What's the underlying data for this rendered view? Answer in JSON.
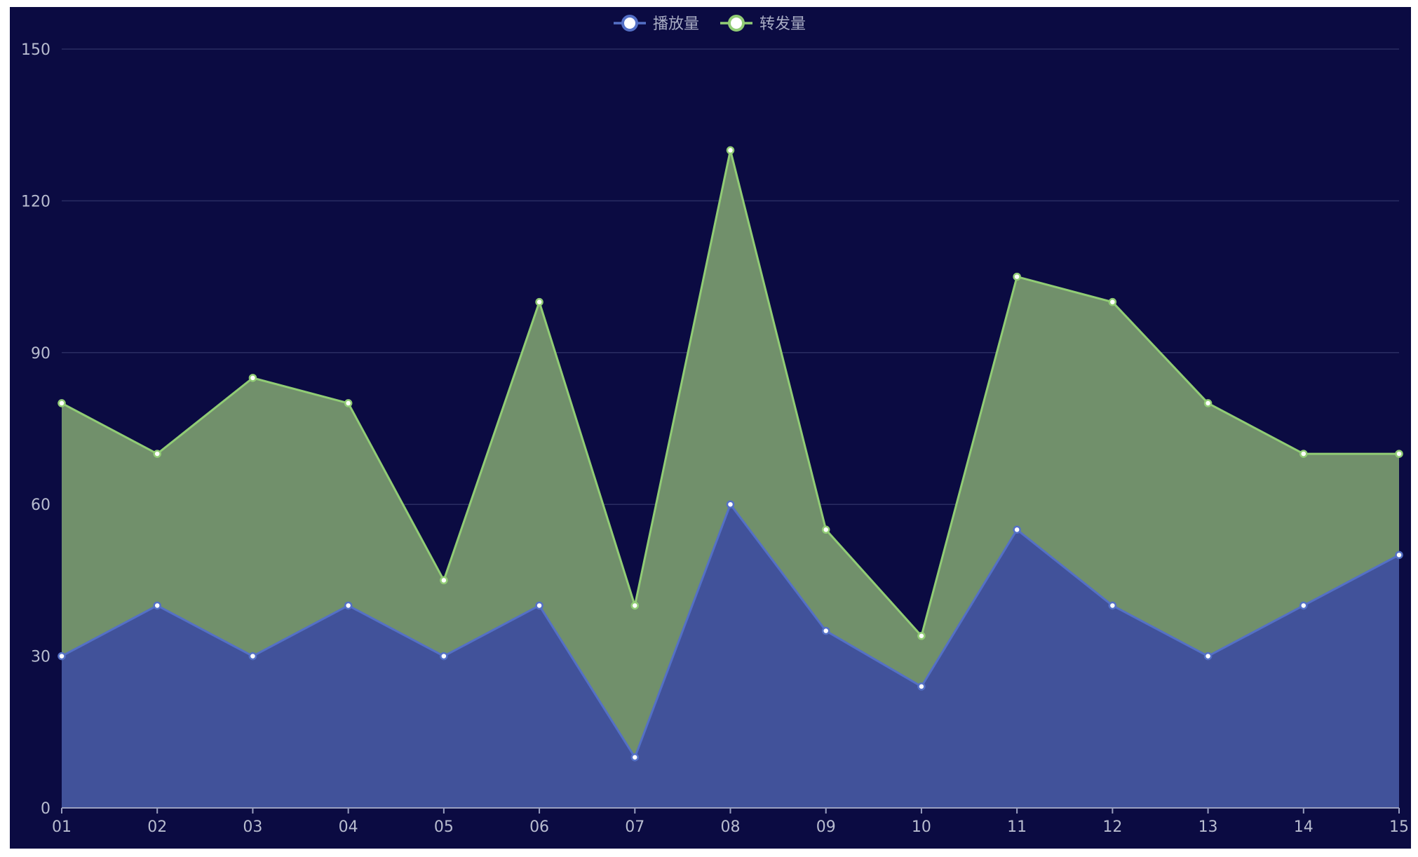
{
  "chart_data": {
    "type": "area",
    "stacked": true,
    "categories": [
      "01",
      "02",
      "03",
      "04",
      "05",
      "06",
      "07",
      "08",
      "09",
      "10",
      "11",
      "12",
      "13",
      "14",
      "15"
    ],
    "series": [
      {
        "name": "播放量",
        "values": [
          30,
          40,
          30,
          40,
          30,
          40,
          10,
          60,
          35,
          24,
          55,
          40,
          30,
          40,
          50
        ],
        "line_color": "#5470c6",
        "fill_color": "#41529a"
      },
      {
        "name": "转发量",
        "values": [
          50,
          30,
          55,
          40,
          15,
          60,
          30,
          70,
          20,
          10,
          50,
          60,
          50,
          30,
          20
        ],
        "line_color": "#91cc75",
        "fill_color": "#71906b"
      }
    ],
    "stack_totals_note_free": true,
    "y_ticks": [
      "0",
      "30",
      "60",
      "90",
      "120",
      "150"
    ],
    "ylim": [
      0,
      150
    ],
    "grid": true,
    "legend_position": "top-center",
    "background_color": "#0b0b42"
  }
}
